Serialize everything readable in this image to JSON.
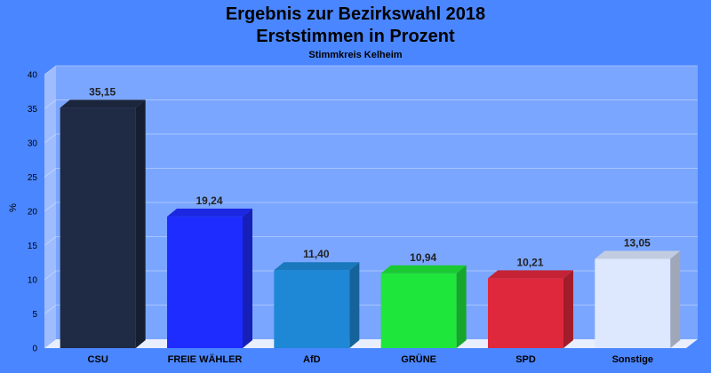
{
  "chart_data": {
    "type": "bar",
    "title_line1": "Ergebnis zur Bezirkswahl 2018",
    "title_line2": "Erststimmen in Prozent",
    "subtitle": "Stimmkreis Kelheim",
    "ylabel": "%",
    "xlabel": "",
    "ylim": [
      0,
      40
    ],
    "yticks": [
      "0",
      "5",
      "10",
      "15",
      "20",
      "25",
      "30",
      "35",
      "40"
    ],
    "yticks_values": [
      0,
      5,
      10,
      15,
      20,
      25,
      30,
      35,
      40
    ],
    "grid": true,
    "categories": [
      "CSU",
      "FREIE WÄHLER",
      "AfD",
      "GRÜNE",
      "SPD",
      "Sonstige"
    ],
    "values": [
      35.15,
      19.24,
      11.4,
      10.94,
      10.21,
      13.05
    ],
    "value_labels": [
      "35,15",
      "19,24",
      "11,40",
      "10,94",
      "10,21",
      "13,05"
    ],
    "colors": [
      "#1f2a44",
      "#1f2cff",
      "#1e88d6",
      "#1fe63a",
      "#e0283c",
      "#dde8ff"
    ],
    "background_color": "#4a86ff",
    "plot_color": "#7aa6ff"
  }
}
